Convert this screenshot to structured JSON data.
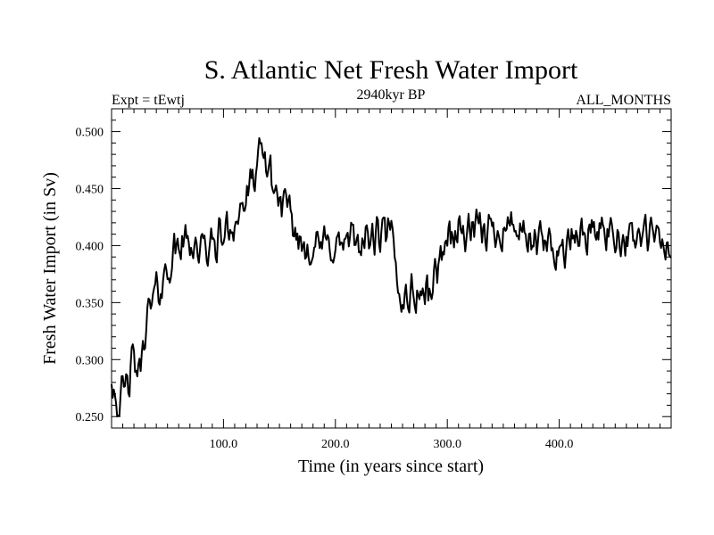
{
  "chart_data": {
    "type": "line",
    "title": "S. Atlantic Net Fresh Water Import",
    "subtitle_left": "Expt = tEwtj",
    "subtitle_center": "2940kyr BP",
    "subtitle_right": "ALL_MONTHS",
    "xlabel": "Time (in years since start)",
    "ylabel": "Fresh Water Import (in Sv)",
    "xlim": [
      0,
      500
    ],
    "ylim": [
      0.24,
      0.52
    ],
    "x_ticks": [
      100,
      200,
      300,
      400
    ],
    "x_tick_labels": [
      "100.0",
      "200.0",
      "300.0",
      "400.0"
    ],
    "y_ticks": [
      0.25,
      0.3,
      0.35,
      0.4,
      0.45,
      0.5
    ],
    "y_tick_labels": [
      "0.250",
      "0.300",
      "0.350",
      "0.400",
      "0.450",
      "0.500"
    ],
    "series": [
      {
        "name": "Net Fresh Water Import",
        "color": "#000000",
        "keypoints": {
          "x": [
            0,
            3,
            6,
            10,
            15,
            20,
            25,
            30,
            35,
            40,
            45,
            50,
            55,
            60,
            70,
            80,
            90,
            100,
            110,
            120,
            125,
            130,
            135,
            140,
            145,
            150,
            155,
            160,
            170,
            200,
            250,
            257,
            285,
            300,
            350,
            360,
            370,
            380,
            400,
            420,
            440,
            460,
            480,
            500
          ],
          "y": [
            0.285,
            0.275,
            0.26,
            0.268,
            0.28,
            0.3,
            0.285,
            0.33,
            0.345,
            0.36,
            0.365,
            0.38,
            0.39,
            0.4,
            0.405,
            0.395,
            0.4,
            0.41,
            0.42,
            0.44,
            0.45,
            0.47,
            0.48,
            0.47,
            0.45,
            0.44,
            0.435,
            0.42,
            0.4,
            0.4,
            0.41,
            0.355,
            0.36,
            0.41,
            0.415,
            0.42,
            0.4,
            0.405,
            0.395,
            0.41,
            0.415,
            0.405,
            0.41,
            0.395
          ]
        },
        "noise_amplitude": 0.018,
        "sample_count": 500
      }
    ]
  }
}
